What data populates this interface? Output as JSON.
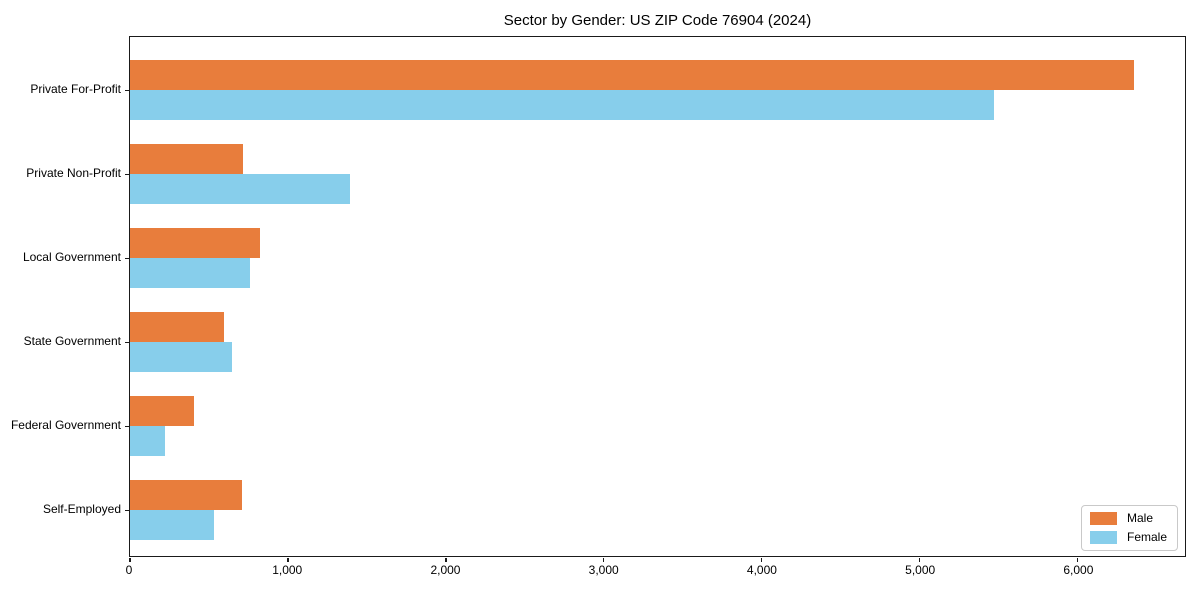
{
  "title": "Sector by Gender: US ZIP Code 76904 (2024)",
  "legend": {
    "items": [
      {
        "label": "Male",
        "color": "#e87d3c"
      },
      {
        "label": "Female",
        "color": "#87ceeb"
      }
    ]
  },
  "chart_data": {
    "type": "bar",
    "orientation": "horizontal",
    "title": "Sector by Gender: US ZIP Code 76904 (2024)",
    "categories": [
      "Private For-Profit",
      "Private Non-Profit",
      "Local Government",
      "State Government",
      "Federal Government",
      "Self-Employed"
    ],
    "series": [
      {
        "name": "Male",
        "color": "#e87d3c",
        "values": [
          6360,
          715,
          820,
          595,
          405,
          710
        ]
      },
      {
        "name": "Female",
        "color": "#87ceeb",
        "values": [
          5470,
          1395,
          760,
          645,
          220,
          530
        ]
      }
    ],
    "xlabel": "",
    "ylabel": "",
    "xlim": [
      0,
      6680
    ],
    "x_ticks": [
      0,
      1000,
      2000,
      3000,
      4000,
      5000,
      6000
    ],
    "x_tick_labels": [
      "0",
      "1,000",
      "2,000",
      "3,000",
      "4,000",
      "5,000",
      "6,000"
    ],
    "grid": false,
    "legend_position": "lower right"
  }
}
